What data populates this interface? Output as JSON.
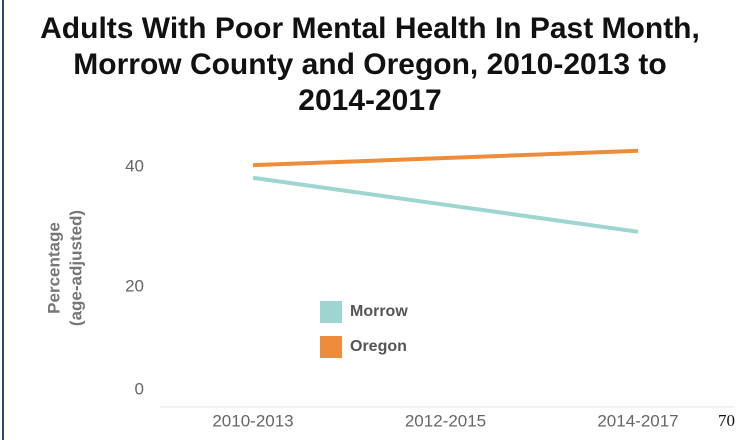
{
  "chart_data": {
    "type": "line",
    "title": [
      "Adults With Poor Mental Health In Past Month,",
      "Morrow County and Oregon, 2010-2013 to",
      "2014-2017"
    ],
    "ylabel": [
      "Percentage",
      "(age-adjusted)"
    ],
    "categories": [
      "2010-2013",
      "2012-2015",
      "2014-2017"
    ],
    "series": [
      {
        "name": "Morrow",
        "color": "#9dd5d0",
        "values": [
          38.2,
          33.7,
          29.2
        ]
      },
      {
        "name": "Oregon",
        "color": "#ee8c3a",
        "values": [
          40.3,
          41.5,
          42.7
        ]
      }
    ],
    "ylim": [
      0,
      44.5
    ],
    "yticks": [
      0,
      20,
      40
    ],
    "grid": false,
    "page_number": "70"
  }
}
